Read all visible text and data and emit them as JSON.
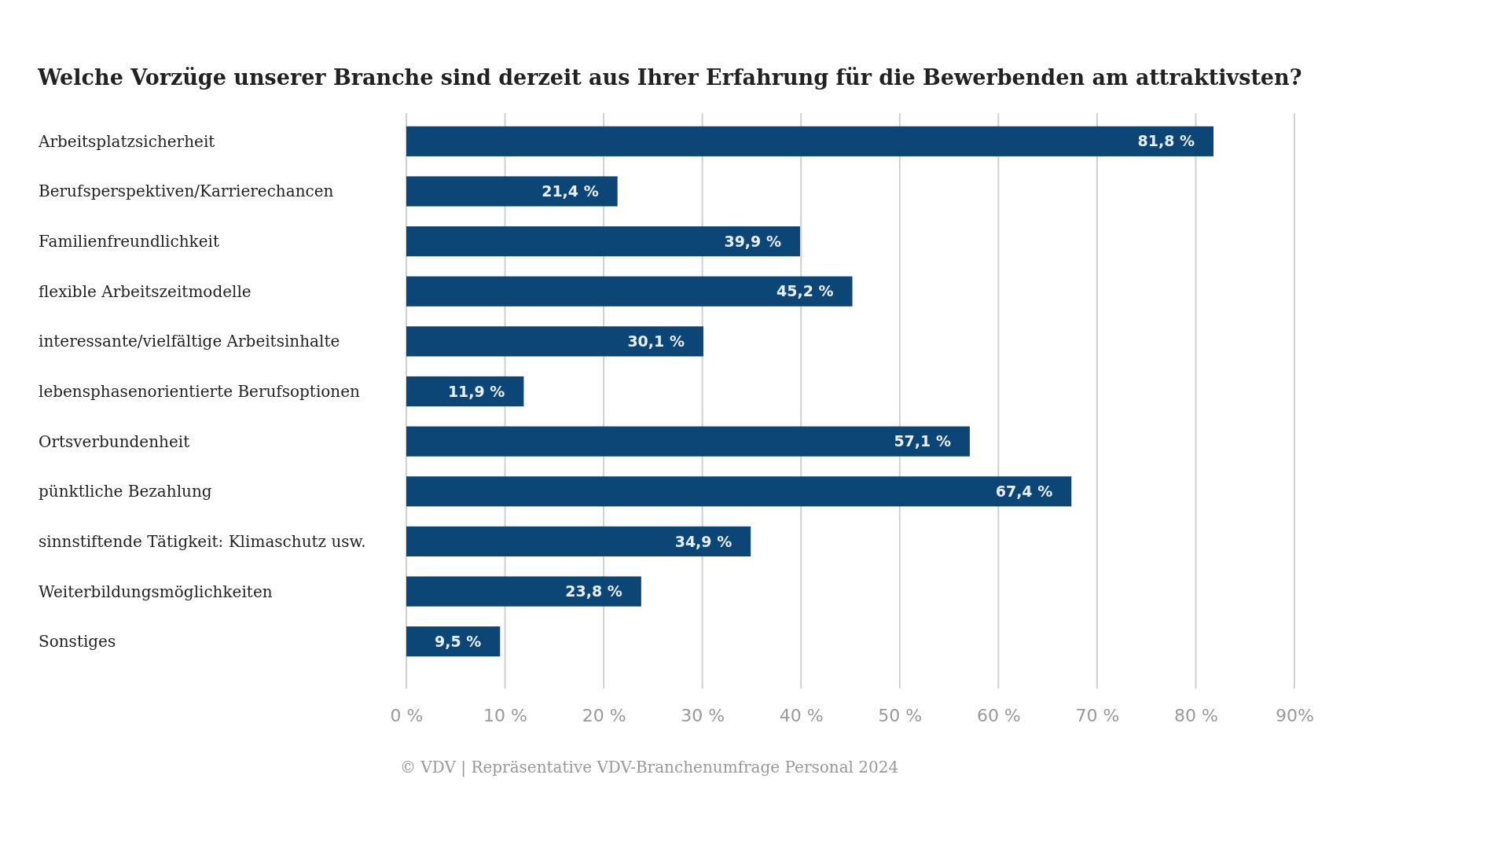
{
  "chart_data": {
    "type": "bar",
    "orientation": "horizontal",
    "title": "Welche Vorzüge unserer Branche sind derzeit aus Ihrer Erfahrung für die Bewerbenden am attraktivsten?",
    "categories": [
      "Arbeitsplatzsicherheit",
      "Berufsperspektiven/Karrierechancen",
      "Familienfreundlichkeit",
      "flexible Arbeitszeitmodelle",
      "interessante/vielfältige Arbeitsinhalte",
      "lebensphasenorientierte Berufsoptionen",
      "Ortsverbundenheit",
      "pünktliche Bezahlung",
      "sinnstiftende Tätigkeit: Klimaschutz usw.",
      "Weiterbildungsmöglichkeiten",
      "Sonstiges"
    ],
    "values": [
      81.8,
      21.4,
      39.9,
      45.2,
      30.1,
      11.9,
      57.1,
      67.4,
      34.9,
      23.8,
      9.5
    ],
    "value_labels": [
      "81,8 %",
      "21,4 %",
      "39,9 %",
      "45,2 %",
      "30,1 %",
      "11,9 %",
      "57,1 %",
      "67,4 %",
      "34,9 %",
      "23,8 %",
      "9,5 %"
    ],
    "color": "#0b4677",
    "xlim": [
      0,
      90
    ],
    "xticks": [
      {
        "value": 0,
        "label": "0 %"
      },
      {
        "value": 10,
        "label": "10 %"
      },
      {
        "value": 20,
        "label": "20 %"
      },
      {
        "value": 30,
        "label": "30 %"
      },
      {
        "value": 40,
        "label": "40 %"
      },
      {
        "value": 50,
        "label": "50 %"
      },
      {
        "value": 60,
        "label": "60 %"
      },
      {
        "value": 70,
        "label": "70 %"
      },
      {
        "value": 80,
        "label": "80 %"
      },
      {
        "value": 90,
        "label": "90%"
      }
    ],
    "grid": "x",
    "annotations": [
      "© VDV | Repräsentative VDV-Branchenumfrage Personal 2024"
    ]
  }
}
